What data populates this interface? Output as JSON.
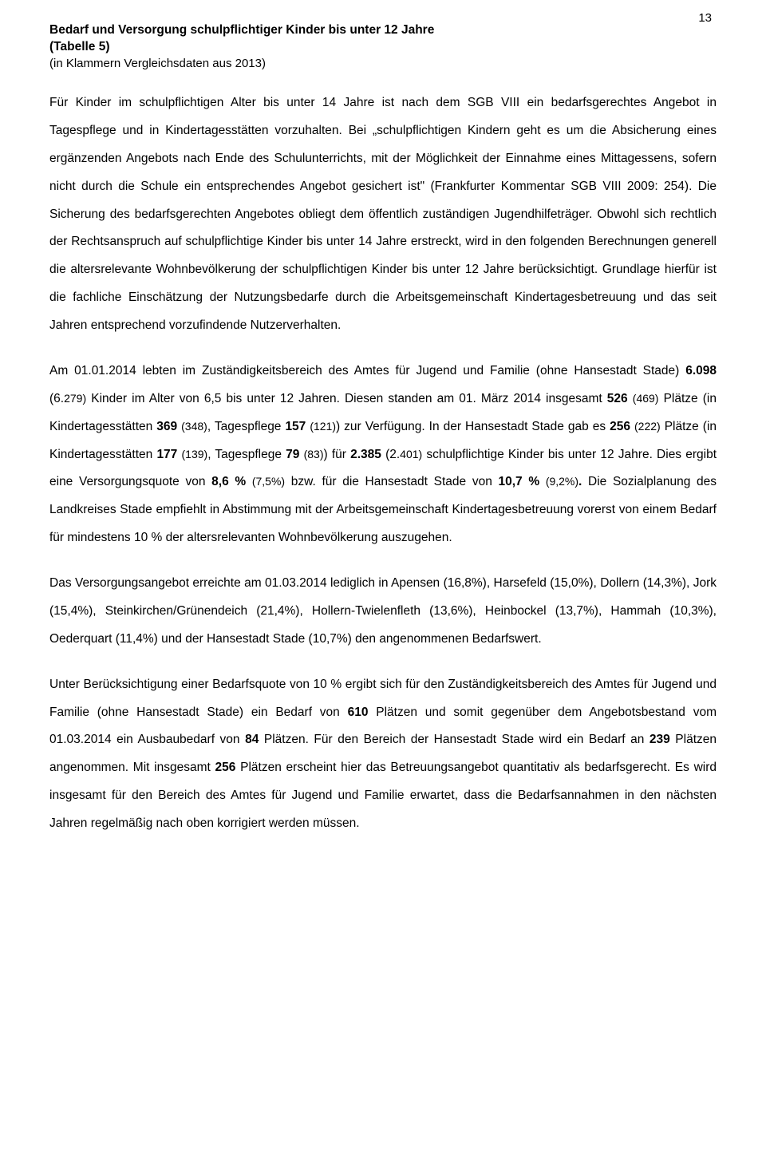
{
  "pageNumber": "13",
  "heading": {
    "line1": "Bedarf und Versorgung schulpflichtiger Kinder bis unter 12 Jahre",
    "line2": "(Tabelle 5)",
    "line3": "(in Klammern Vergleichsdaten aus 2013)"
  },
  "p1": {
    "t1": "Für Kinder im schulpflichtigen Alter bis unter 14 Jahre  ist nach dem SGB VIII ein bedarfsgerechtes Angebot in Tagespflege und in Kindertagesstätten vorzuhalten. Bei „schulpflichtigen Kindern geht es um die Absicherung eines ergänzenden Angebots nach Ende des Schulunterrichts, mit der Möglichkeit der Einnahme eines Mittagessens, sofern nicht durch die Schule ein entsprechendes Angebot gesichert ist\" (Frankfurter Kommentar SGB VIII 2009: 254). Die Sicherung des bedarfsgerechten Angebotes obliegt dem öffentlich zuständigen Jugendhilfeträger. Obwohl sich rechtlich der Rechtsanspruch auf schulpflichtige Kinder bis unter 14 Jahre erstreckt, wird in den folgenden Berechnungen generell die altersrelevante Wohnbevölkerung der schulpflichtigen Kinder bis unter 12 Jahre berücksichtigt. Grundlage hierfür ist die fachliche Einschätzung der Nutzungsbedarfe durch die Arbeitsgemeinschaft Kindertagesbetreuung und das seit Jahren entsprechend vorzufindende Nutzerverhalten."
  },
  "p2": {
    "t1": "Am 01.01.2014 lebten im Zuständigkeitsbereich des Amtes für Jugend und Familie (ohne Hansestadt Stade) ",
    "b1": "6.098",
    "t2": " (6.",
    "s1": "279)",
    "t3": " Kinder im Alter von 6,5 bis unter 12 Jahren. Diesen standen am 01. März 2014 insgesamt ",
    "b2": "526",
    "t4": " ",
    "s2": "(469)",
    "t5": " Plätze (in Kindertagesstätten ",
    "b3": "369",
    "t6": " ",
    "s3": "(348)",
    "t7": ", Tagespflege ",
    "b4": "157",
    "t8": " ",
    "s4": "(121)",
    "t9": ") zur Verfügung. In der Hansestadt Stade gab es ",
    "b5": "256",
    "t10": " ",
    "s5": "(222)",
    "t11": " Plätze (in Kindertagesstätten ",
    "b6": "177",
    "t12": " ",
    "s6": "(139)",
    "t13": ", Tagespflege ",
    "b7": "79",
    "t14": " ",
    "s7": "(83)",
    "t15": ") für ",
    "b8": "2.385",
    "t16": " (2.",
    "s8": "401)",
    "t17": " schulpflichtige Kinder bis unter 12 Jahre. Dies ergibt eine Versorgungsquote von  ",
    "b9": "8,6 %",
    "t18": " ",
    "s9": "(7,5%)",
    "t19": " bzw. für die Hansestadt Stade von ",
    "b10": "10,7 %",
    "t20": " ",
    "s10": "(9,2%)",
    "b11": ".",
    "t21": " Die Sozialplanung des Landkreises Stade empfiehlt in Abstimmung mit der Arbeitsgemeinschaft  Kindertagesbetreuung vorerst von einem Bedarf für mindestens 10 % der altersrelevanten Wohnbevölkerung auszugehen."
  },
  "p3": {
    "t1": "Das Versorgungsangebot erreichte am 01.03.2014 lediglich in Apensen (16,8%), Harsefeld (15,0%), Dollern (14,3%), Jork (15,4%), Steinkirchen/Grünendeich (21,4%), Hollern-Twielenfleth (13,6%), Heinbockel (13,7%), Hammah (10,3%), Oederquart (11,4%) und der Hansestadt Stade (10,7%) den angenommenen Bedarfswert."
  },
  "p4": {
    "t1": "Unter Berücksichtigung einer Bedarfsquote von 10 % ergibt sich für den Zuständigkeitsbereich des Amtes für Jugend und Familie (ohne Hansestadt Stade) ein Bedarf von ",
    "b1": "610",
    "t2": " Plätzen und somit gegenüber dem Angebotsbestand vom 01.03.2014 ein Ausbaubedarf von ",
    "b2": "84",
    "t3": " Plätzen. Für den Bereich der Hansestadt Stade wird ein Bedarf an ",
    "b3": "239",
    "t4": " Plätzen angenommen. Mit insgesamt ",
    "b4": "256",
    "t5": " Plätzen erscheint hier das Betreuungsangebot quantitativ als bedarfsgerecht. Es wird insgesamt für den Bereich des Amtes für Jugend und Familie erwartet, dass die Bedarfsannahmen in den nächsten Jahren regelmäßig nach oben korrigiert werden müssen."
  }
}
